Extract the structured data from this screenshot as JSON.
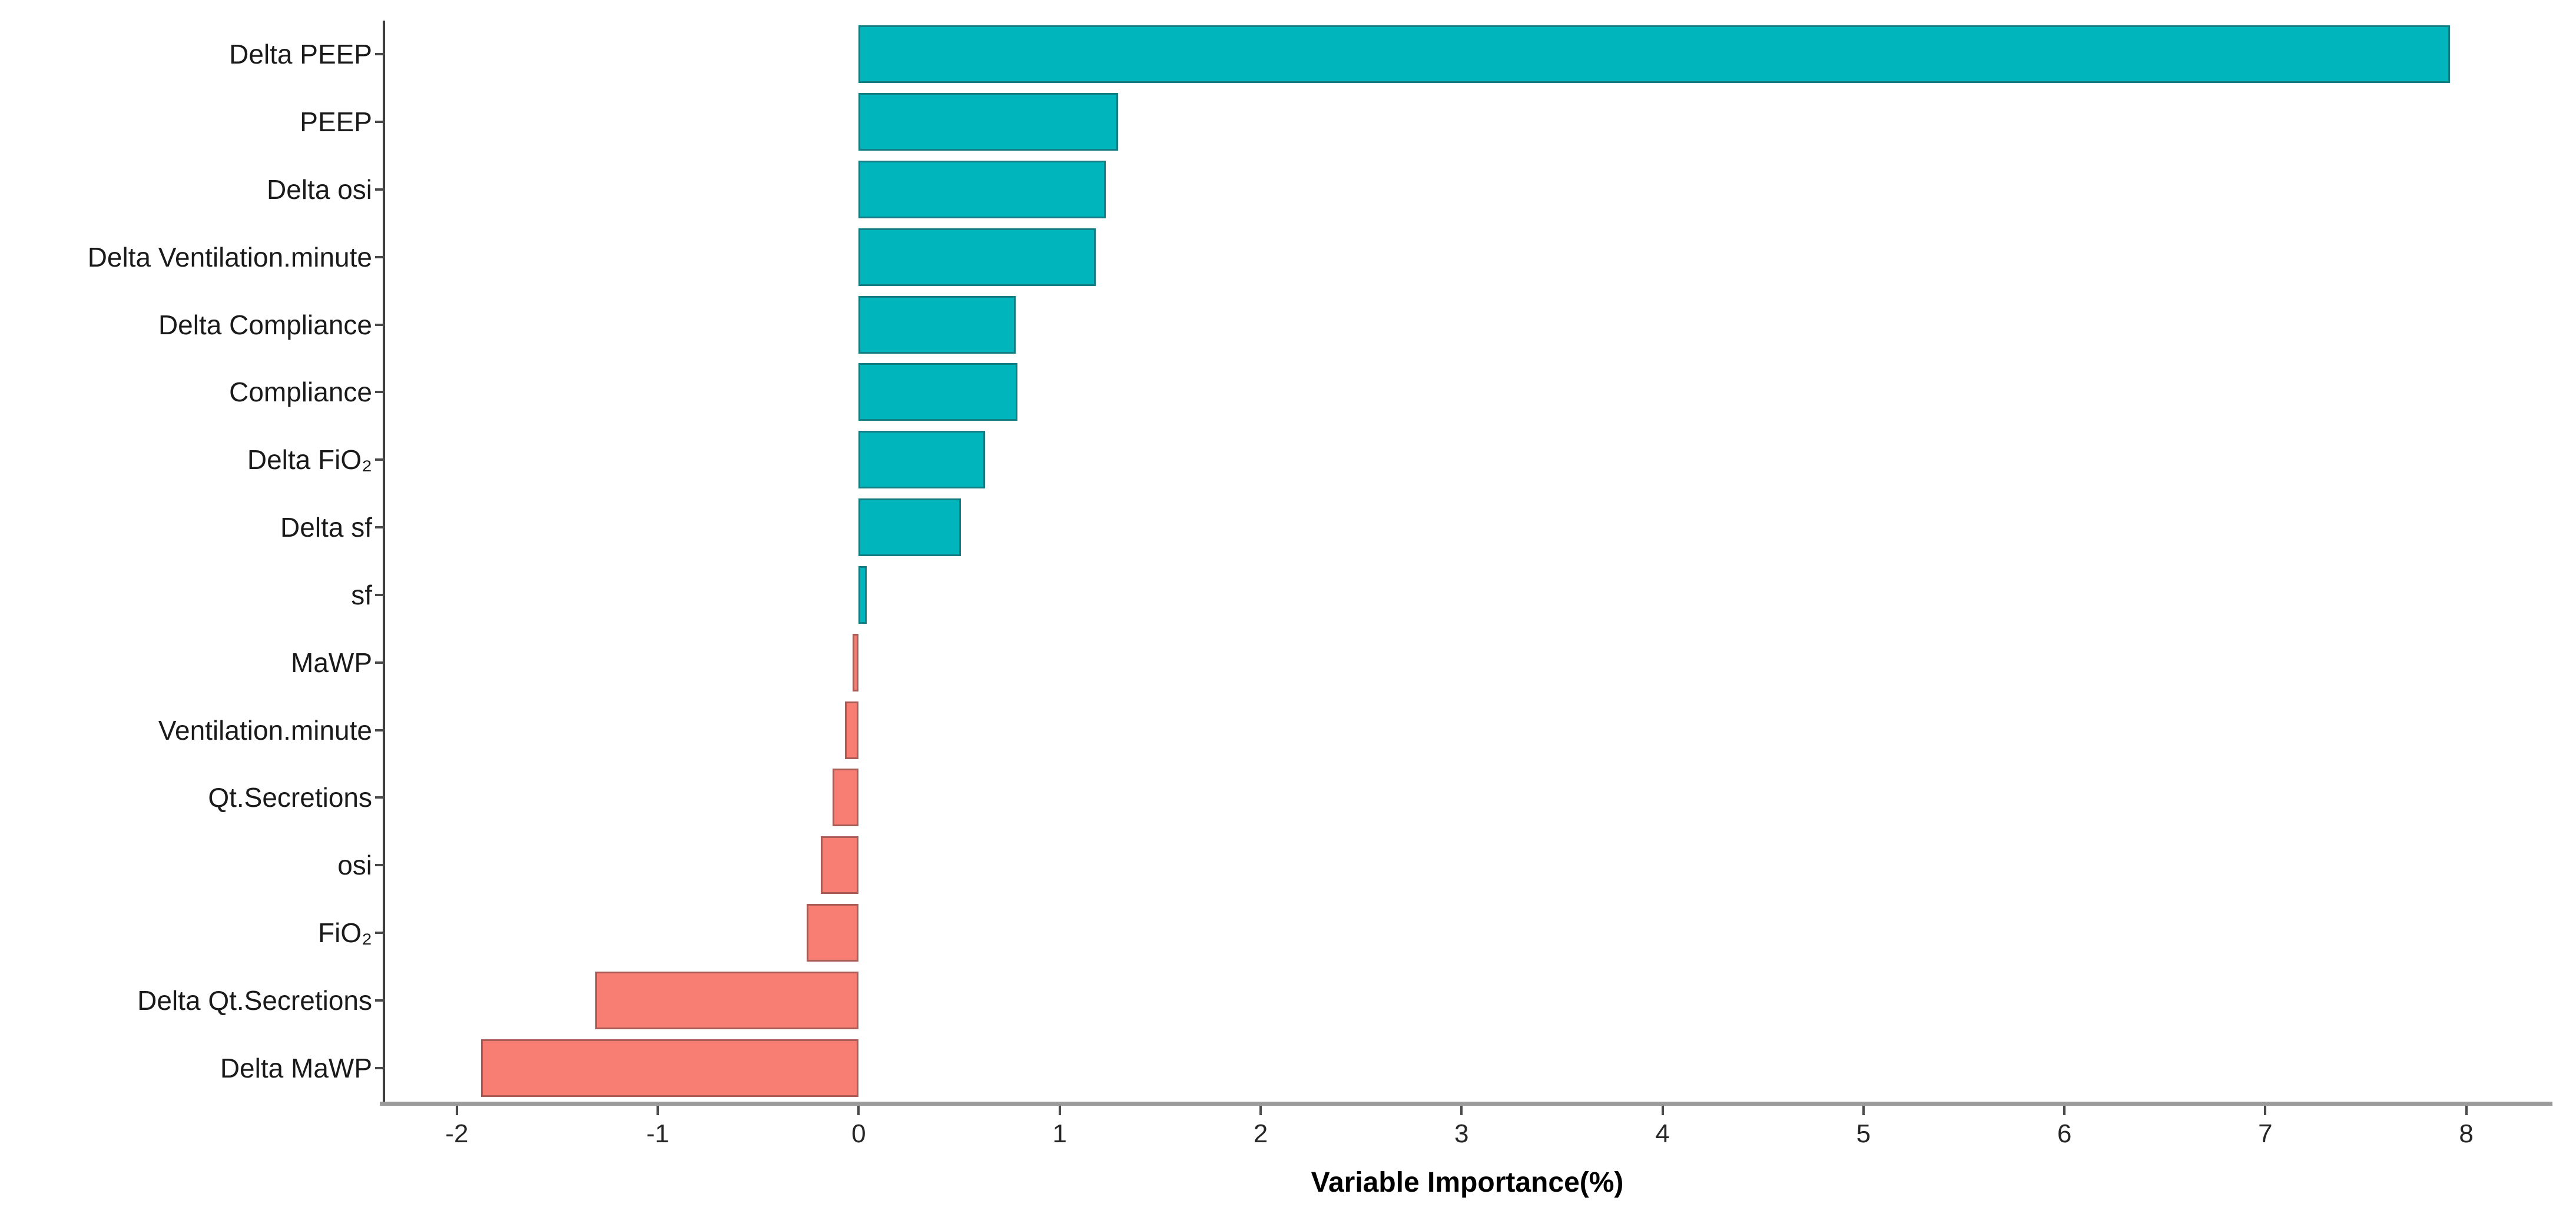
{
  "chart_data": {
    "type": "bar",
    "orientation": "horizontal",
    "title": "",
    "xlabel": "Variable Importance(%)",
    "categories": [
      "Delta PEEP",
      "PEEP",
      "Delta osi",
      "Delta Ventilation.minute",
      "Delta Compliance",
      "Compliance",
      "Delta FiO₂",
      "Delta sf",
      "sf",
      "MaWP",
      "Ventilation.minute",
      "Qt.Secretions",
      "osi",
      "FiO₂",
      "Delta Qt.Secretions",
      "Delta MaWP"
    ],
    "values": [
      7.92,
      1.29,
      1.23,
      1.18,
      0.78,
      0.79,
      0.63,
      0.51,
      0.04,
      -0.03,
      -0.07,
      -0.13,
      -0.19,
      -0.26,
      -1.31,
      -1.88
    ],
    "x_ticks": [
      -2,
      -1,
      0,
      1,
      2,
      3,
      4,
      5,
      6,
      7,
      8
    ],
    "xlim": [
      -2.36,
      8.42
    ],
    "grid": false,
    "legend": false,
    "positive_color": "#00B5BC",
    "negative_color": "#F87D72",
    "bar_border_visible": true
  }
}
